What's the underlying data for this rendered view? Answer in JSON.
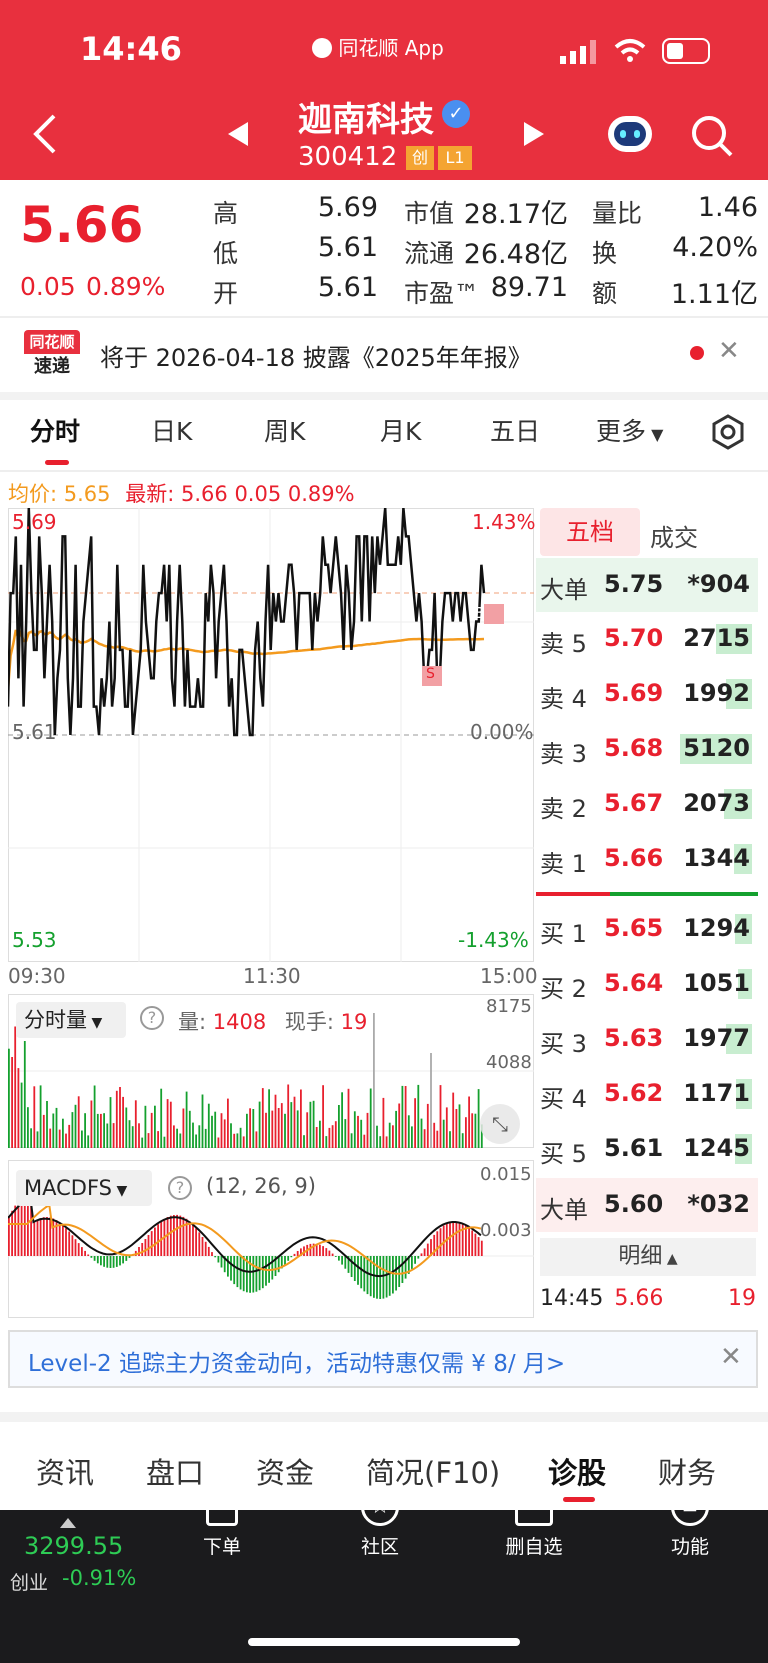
{
  "status_bar": {
    "time": "14:46",
    "app_badge": "同花顺 App"
  },
  "header": {
    "title": "迦南科技",
    "code": "300412",
    "badge_chuang": "创",
    "badge_level": "L1"
  },
  "quote": {
    "price": "5.66",
    "change": "0.05",
    "change_pct": "0.89%",
    "rows": [
      {
        "l1": "高",
        "v1": "5.69",
        "l2": "市值",
        "v2": "28.17亿",
        "l3": "量比",
        "v3": "1.46"
      },
      {
        "l1": "低",
        "v1": "5.61",
        "l2": "流通",
        "v2": "26.48亿",
        "l3": "换",
        "v3": "4.20%"
      },
      {
        "l1": "开",
        "v1": "5.61",
        "l2": "市盈™",
        "v2": "89.71",
        "l3": "额",
        "v3": "1.11亿"
      }
    ]
  },
  "news": {
    "logo_top": "同花顺",
    "logo_bottom": "速递",
    "text": "将于 2026-04-18 披露《2025年年报》"
  },
  "tabs": [
    "分时",
    "日K",
    "周K",
    "月K",
    "五日",
    "更多"
  ],
  "intraday": {
    "avg_label": "均价:",
    "avg_value": "5.65",
    "last_label": "最新:",
    "last_value": "5.66",
    "last_change": "0.05",
    "last_pct": "0.89%",
    "y_high": "5.69",
    "y_high_pct": "1.43%",
    "y_mid": "5.61",
    "y_mid_pct": "0.00%",
    "y_low": "5.53",
    "y_low_pct": "-1.43%",
    "t_start": "09:30",
    "t_mid": "11:30",
    "t_end": "15:00",
    "marker_b": "B",
    "marker_s": "S",
    "prices": [
      5.62,
      5.66,
      5.66,
      5.68,
      5.63,
      5.67,
      5.62,
      5.65,
      5.69,
      5.66,
      5.64,
      5.64,
      5.68,
      5.66,
      5.63,
      5.65,
      5.67,
      5.65,
      5.61,
      5.63,
      5.64,
      5.68,
      5.68,
      5.63,
      5.61,
      5.63,
      5.67,
      5.62,
      5.62,
      5.65,
      5.66,
      5.67,
      5.68,
      5.62,
      5.62,
      5.61,
      5.63,
      5.62,
      5.63,
      5.65,
      5.62,
      5.63,
      5.67,
      5.64,
      5.64,
      5.62,
      5.62,
      5.64,
      5.61,
      5.62,
      5.63,
      5.64,
      5.67,
      5.65,
      5.64,
      5.63,
      5.63,
      5.65,
      5.66,
      5.66,
      5.67,
      5.65,
      5.67,
      5.63,
      5.62,
      5.65,
      5.67,
      5.65,
      5.62,
      5.64,
      5.62,
      5.62,
      5.62,
      5.63,
      5.62,
      5.62,
      5.66,
      5.65,
      5.67,
      5.66,
      5.63,
      5.65,
      5.66,
      5.67,
      5.65,
      5.62,
      5.63,
      5.61,
      5.61,
      5.64,
      5.64,
      5.63,
      5.62,
      5.61,
      5.61,
      5.64,
      5.65,
      5.63,
      5.62,
      5.65,
      5.67,
      5.64,
      5.66,
      5.65,
      5.66,
      5.65,
      5.65,
      5.66,
      5.67,
      5.67,
      5.66,
      5.64,
      5.66,
      5.66,
      5.66,
      5.66,
      5.66,
      5.64,
      5.66,
      5.65,
      5.66,
      5.68,
      5.67,
      5.67,
      5.66,
      5.67,
      5.68,
      5.67,
      5.66,
      5.64,
      5.67,
      5.66,
      5.64,
      5.65,
      5.68,
      5.68,
      5.65,
      5.68,
      5.68,
      5.65,
      5.68,
      5.66,
      5.68,
      5.67,
      5.68,
      5.69,
      5.67,
      5.67,
      5.67,
      5.67,
      5.68,
      5.67,
      5.69,
      5.68,
      5.68,
      5.67,
      5.66,
      5.65,
      5.66,
      5.65,
      5.63,
      5.63,
      5.64,
      5.64,
      5.66,
      5.63,
      5.63,
      5.65,
      5.66,
      5.66,
      5.66,
      5.65,
      5.66,
      5.66,
      5.65,
      5.66,
      5.66,
      5.65,
      5.64,
      5.64,
      5.65,
      5.65,
      5.67,
      5.66
    ]
  },
  "order_book": {
    "tab_levels": "五档",
    "tab_trades": "成交",
    "big_top": {
      "label": "大单",
      "price": "5.75",
      "vol": "*904"
    },
    "asks": [
      {
        "label": "卖 5",
        "price": "5.70",
        "vol": "2715",
        "w": 0.3
      },
      {
        "label": "卖 4",
        "price": "5.69",
        "vol": "1992",
        "w": 0.22
      },
      {
        "label": "卖 3",
        "price": "5.68",
        "vol": "5120",
        "w": 0.6
      },
      {
        "label": "卖 2",
        "price": "5.67",
        "vol": "2073",
        "w": 0.23
      },
      {
        "label": "卖 1",
        "price": "5.66",
        "vol": "1344",
        "w": 0.15
      }
    ],
    "bids": [
      {
        "label": "买 1",
        "price": "5.65",
        "vol": "1294",
        "w": 0.14
      },
      {
        "label": "买 2",
        "price": "5.64",
        "vol": "1051",
        "w": 0.12
      },
      {
        "label": "买 3",
        "price": "5.63",
        "vol": "1977",
        "w": 0.22
      },
      {
        "label": "买 4",
        "price": "5.62",
        "vol": "1171",
        "w": 0.13
      },
      {
        "label": "买 5",
        "price": "5.61",
        "vol": "1245",
        "w": 0.14
      }
    ],
    "big_bottom": {
      "label": "大单",
      "price": "5.60",
      "vol": "*032"
    },
    "detail_label": "明细",
    "last_trade": {
      "time": "14:45",
      "price": "5.66",
      "vol": "19"
    }
  },
  "volume": {
    "selector": "分时量",
    "vol_label": "量:",
    "vol_value": "1408",
    "hand_label": "现手:",
    "hand_value": "19",
    "y_top": "8175",
    "y_mid": "4088"
  },
  "macd": {
    "selector": "MACDFS",
    "params": "(12, 26, 9)",
    "y_top": "0.015",
    "y_mid": "0.003"
  },
  "promo": {
    "text": "Level-2 追踪主力资金动向，活动特惠仅需 ¥ 8/ 月>"
  },
  "bottom_tabs": [
    "资讯",
    "盘口",
    "资金",
    "简况(F10)",
    "诊股",
    "财务"
  ],
  "dock": {
    "index_value": "3299.55",
    "index_name": "创业",
    "index_change": "-0.91%",
    "items": [
      "下单",
      "社区",
      "删自选",
      "功能"
    ]
  }
}
